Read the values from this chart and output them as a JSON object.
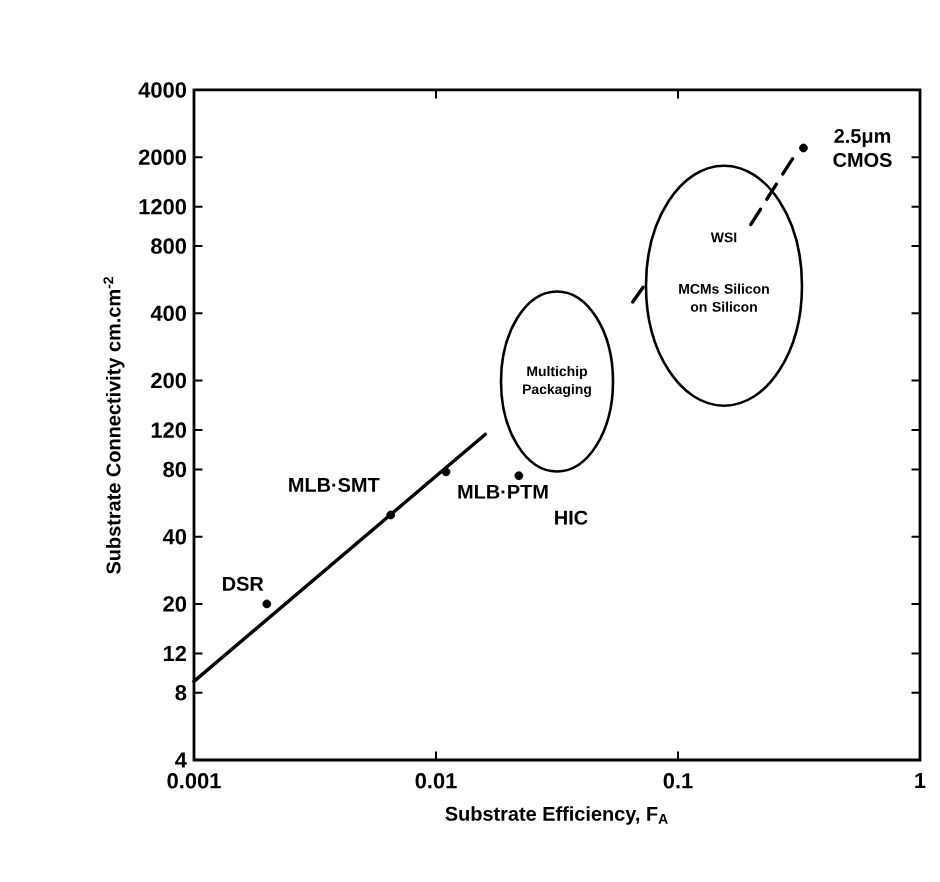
{
  "chart_data": {
    "type": "scatter",
    "xlabel": "Substrate Efficiency, F$_{A}$",
    "ylabel": "Substrate Connectivity cm.cm$^{-2}$",
    "log": "xy",
    "xlim": [
      0.001,
      1
    ],
    "ylim": [
      4,
      4000
    ],
    "xticks": [
      0.001,
      0.01,
      0.1,
      1
    ],
    "yticks": [
      4,
      8,
      12,
      20,
      40,
      80,
      120,
      200,
      400,
      800,
      1200,
      2000,
      4000
    ],
    "series": [
      {
        "color": "#000000",
        "marker": "circle",
        "x": [
          0.002,
          0.0065,
          0.011,
          0.022,
          0.33
        ],
        "values": [
          20,
          50,
          78,
          75,
          2200
        ]
      },
      {
        "type": "line",
        "color": "#000000",
        "line_style": "solid",
        "x": [
          0.001,
          0.016
        ],
        "values": [
          9,
          115
        ]
      },
      {
        "type": "line",
        "color": "#000000",
        "line_style": "dashed",
        "x": [
          0.065,
          0.075
        ],
        "values": [
          450,
          560
        ]
      },
      {
        "type": "line",
        "color": "#000000",
        "line_style": "dashed",
        "x": [
          0.2,
          0.3
        ],
        "values": [
          1000,
          2000
        ]
      }
    ],
    "annotations": [
      {
        "text": "DSR",
        "x": 0.002,
        "y": 20
      },
      {
        "text": "MLB·SMT",
        "x": 0.0065,
        "y": 50
      },
      {
        "text": "MLB·PTM",
        "x": 0.011,
        "y": 78
      },
      {
        "text": "HIC",
        "x": 0.022,
        "y": 75
      },
      {
        "text": "2.5μm CMOS",
        "x": 0.33,
        "y": 2200
      },
      "Multichip Packaging",
      "WSI",
      "MCMs Silicon on Silicon"
    ]
  }
}
